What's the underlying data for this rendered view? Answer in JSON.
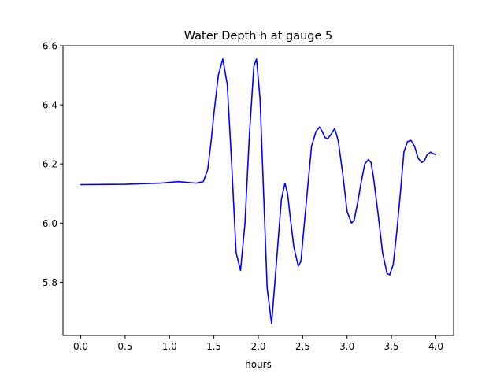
{
  "chart_data": {
    "type": "line",
    "title": "Water Depth h at gauge 5",
    "xlabel": "hours",
    "ylabel": "",
    "xlim": [
      -0.2,
      4.2
    ],
    "ylim": [
      5.62,
      6.6
    ],
    "grid": false,
    "xticks": [
      0.0,
      0.5,
      1.0,
      1.5,
      2.0,
      2.5,
      3.0,
      3.5,
      4.0
    ],
    "xtick_labels": [
      "0.0",
      "0.5",
      "1.0",
      "1.5",
      "2.0",
      "2.5",
      "3.0",
      "3.5",
      "4.0"
    ],
    "yticks": [
      5.8,
      6.0,
      6.2,
      6.4,
      6.6
    ],
    "ytick_labels": [
      "5.8",
      "6.0",
      "6.2",
      "6.4",
      "6.6"
    ],
    "line_color": "#0000ff",
    "series": [
      {
        "x": [
          0.0,
          0.5,
          0.7,
          0.9,
          1.0,
          1.1,
          1.3,
          1.38,
          1.43,
          1.47,
          1.5,
          1.55,
          1.6,
          1.65,
          1.7,
          1.75,
          1.8,
          1.85,
          1.9,
          1.95,
          1.98,
          2.02,
          2.06,
          2.1,
          2.15,
          2.2,
          2.26,
          2.3,
          2.33,
          2.36,
          2.4,
          2.45,
          2.48,
          2.51,
          2.55,
          2.6,
          2.65,
          2.69,
          2.72,
          2.75,
          2.78,
          2.82,
          2.86,
          2.9,
          2.95,
          3.0,
          3.05,
          3.08,
          3.12,
          3.16,
          3.2,
          3.24,
          3.27,
          3.3,
          3.35,
          3.4,
          3.45,
          3.48,
          3.52,
          3.56,
          3.6,
          3.64,
          3.68,
          3.72,
          3.76,
          3.8,
          3.84,
          3.87,
          3.9,
          3.94,
          3.97,
          4.0
        ],
        "y": [
          6.13,
          6.131,
          6.133,
          6.135,
          6.138,
          6.14,
          6.135,
          6.14,
          6.18,
          6.28,
          6.37,
          6.5,
          6.555,
          6.47,
          6.2,
          5.9,
          5.84,
          6.0,
          6.3,
          6.53,
          6.555,
          6.42,
          6.1,
          5.78,
          5.66,
          5.85,
          6.08,
          6.135,
          6.1,
          6.02,
          5.92,
          5.855,
          5.87,
          5.97,
          6.1,
          6.26,
          6.31,
          6.325,
          6.31,
          6.29,
          6.285,
          6.3,
          6.32,
          6.28,
          6.17,
          6.04,
          6.0,
          6.01,
          6.07,
          6.14,
          6.2,
          6.215,
          6.205,
          6.15,
          6.03,
          5.9,
          5.83,
          5.825,
          5.86,
          5.97,
          6.1,
          6.24,
          6.275,
          6.28,
          6.26,
          6.22,
          6.205,
          6.21,
          6.23,
          6.24,
          6.235,
          6.232
        ]
      }
    ]
  }
}
